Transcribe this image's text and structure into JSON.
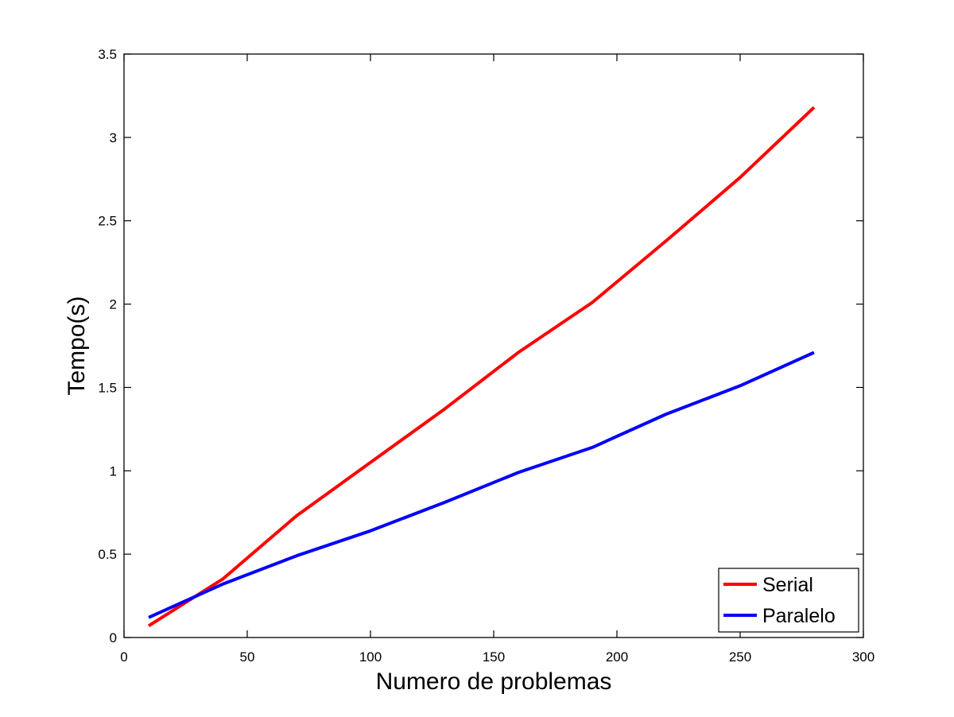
{
  "chart_data": {
    "type": "line",
    "xlabel": "Numero de problemas",
    "ylabel": "Tempo(s)",
    "xlim": [
      0,
      300
    ],
    "ylim": [
      0,
      3.5
    ],
    "xticks": [
      0,
      50,
      100,
      150,
      200,
      250,
      300
    ],
    "yticks": [
      0,
      0.5,
      1,
      1.5,
      2,
      2.5,
      3,
      3.5
    ],
    "xtick_labels": [
      "0",
      "50",
      "100",
      "150",
      "200",
      "250",
      "300"
    ],
    "ytick_labels": [
      "0",
      "0.5",
      "1",
      "1.5",
      "2",
      "2.5",
      "3",
      "3.5"
    ],
    "grid": false,
    "legend_position": "bottom-right",
    "x": [
      10,
      40,
      70,
      100,
      130,
      160,
      190,
      220,
      250,
      280
    ],
    "series": [
      {
        "name": "Serial",
        "color": "#ff0000",
        "values": [
          0.07,
          0.35,
          0.73,
          1.05,
          1.37,
          1.71,
          2.01,
          2.38,
          2.76,
          3.18
        ]
      },
      {
        "name": "Paralelo",
        "color": "#0000ff",
        "values": [
          0.12,
          0.32,
          0.49,
          0.64,
          0.81,
          0.99,
          1.14,
          1.34,
          1.51,
          1.71
        ]
      }
    ]
  }
}
